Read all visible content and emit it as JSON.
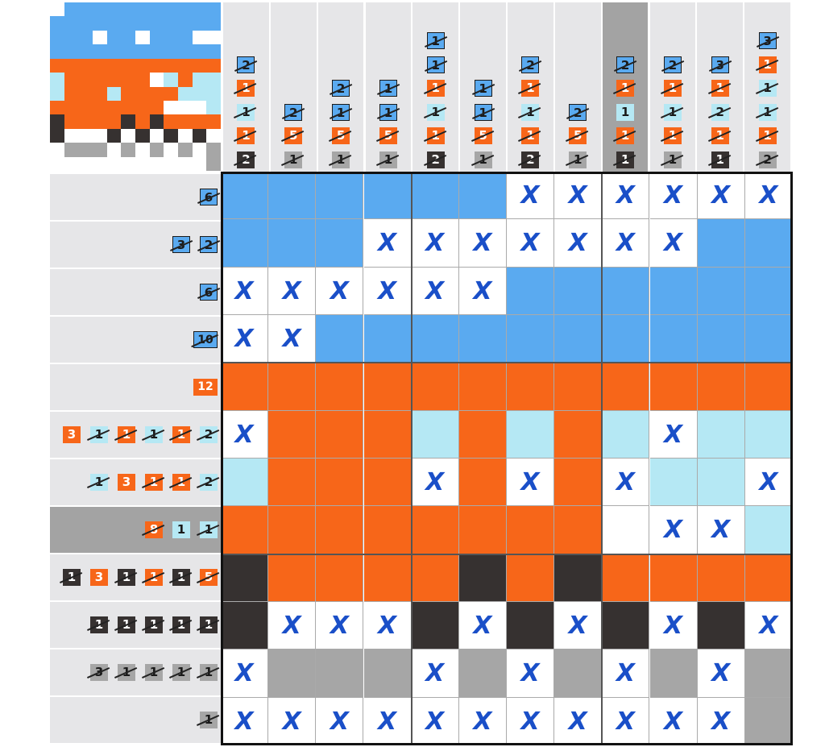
{
  "puzzle": {
    "rows": 12,
    "cols": 12,
    "selected_col": 8,
    "selected_row": 7
  },
  "palette": {
    "b": "#5aaaf0",
    "o": "#f76619",
    "l": "#b5e8f4",
    "d": "#363130",
    "g": "#a6a6a6",
    "w": "#ffffff"
  },
  "column_clues": [
    [
      {
        "v": "2",
        "c": "b",
        "d": true
      },
      {
        "v": "1",
        "c": "o",
        "d": true
      },
      {
        "v": "1",
        "c": "l",
        "d": true
      },
      {
        "v": "1",
        "c": "o",
        "d": true
      },
      {
        "v": "2",
        "c": "d",
        "d": true
      }
    ],
    [
      {
        "v": "2",
        "c": "b",
        "d": true
      },
      {
        "v": "5",
        "c": "o",
        "d": true
      },
      {
        "v": "1",
        "c": "g",
        "d": true
      }
    ],
    [
      {
        "v": "2",
        "c": "b",
        "d": true
      },
      {
        "v": "1",
        "c": "b",
        "d": true
      },
      {
        "v": "5",
        "c": "o",
        "d": true
      },
      {
        "v": "1",
        "c": "g",
        "d": true
      }
    ],
    [
      {
        "v": "1",
        "c": "b",
        "d": true
      },
      {
        "v": "1",
        "c": "b",
        "d": true
      },
      {
        "v": "5",
        "c": "o",
        "d": true
      },
      {
        "v": "1",
        "c": "g",
        "d": true
      }
    ],
    [
      {
        "v": "1",
        "c": "b",
        "d": true
      },
      {
        "v": "1",
        "c": "b",
        "d": true
      },
      {
        "v": "1",
        "c": "o",
        "d": true
      },
      {
        "v": "1",
        "c": "l",
        "d": true
      },
      {
        "v": "1",
        "c": "o",
        "d": true
      },
      {
        "v": "2",
        "c": "d",
        "d": true
      }
    ],
    [
      {
        "v": "1",
        "c": "b",
        "d": true
      },
      {
        "v": "1",
        "c": "b",
        "d": true
      },
      {
        "v": "5",
        "c": "o",
        "d": true
      },
      {
        "v": "1",
        "c": "g",
        "d": true
      }
    ],
    [
      {
        "v": "2",
        "c": "b",
        "d": true
      },
      {
        "v": "1",
        "c": "o",
        "d": true
      },
      {
        "v": "1",
        "c": "l",
        "d": true
      },
      {
        "v": "1",
        "c": "o",
        "d": true
      },
      {
        "v": "2",
        "c": "d",
        "d": true
      }
    ],
    [
      {
        "v": "2",
        "c": "b",
        "d": true
      },
      {
        "v": "5",
        "c": "o",
        "d": true
      },
      {
        "v": "1",
        "c": "g",
        "d": true
      }
    ],
    [
      {
        "v": "2",
        "c": "b",
        "d": true
      },
      {
        "v": "1",
        "c": "o",
        "d": true
      },
      {
        "v": "1",
        "c": "l",
        "d": false
      },
      {
        "v": "1",
        "c": "o",
        "d": true
      },
      {
        "v": "1",
        "c": "d",
        "d": true
      }
    ],
    [
      {
        "v": "2",
        "c": "b",
        "d": true
      },
      {
        "v": "1",
        "c": "o",
        "d": true
      },
      {
        "v": "1",
        "c": "l",
        "d": true
      },
      {
        "v": "1",
        "c": "o",
        "d": true
      },
      {
        "v": "1",
        "c": "g",
        "d": true
      }
    ],
    [
      {
        "v": "3",
        "c": "b",
        "d": true
      },
      {
        "v": "1",
        "c": "o",
        "d": true
      },
      {
        "v": "2",
        "c": "l",
        "d": true
      },
      {
        "v": "1",
        "c": "o",
        "d": true
      },
      {
        "v": "1",
        "c": "d",
        "d": true
      }
    ],
    [
      {
        "v": "3",
        "c": "b",
        "d": true
      },
      {
        "v": "1",
        "c": "o",
        "d": true
      },
      {
        "v": "1",
        "c": "l",
        "d": true
      },
      {
        "v": "1",
        "c": "l",
        "d": true
      },
      {
        "v": "1",
        "c": "o",
        "d": true
      },
      {
        "v": "2",
        "c": "g",
        "d": true
      }
    ]
  ],
  "row_clues": [
    [
      {
        "v": "6",
        "c": "b",
        "d": true
      }
    ],
    [
      {
        "v": "3",
        "c": "b",
        "d": true
      },
      {
        "v": "2",
        "c": "b",
        "d": true
      }
    ],
    [
      {
        "v": "6",
        "c": "b",
        "d": true
      }
    ],
    [
      {
        "v": "10",
        "c": "b",
        "d": true
      }
    ],
    [
      {
        "v": "12",
        "c": "o",
        "d": false
      }
    ],
    [
      {
        "v": "3",
        "c": "o",
        "d": false
      },
      {
        "v": "1",
        "c": "l",
        "d": true
      },
      {
        "v": "1",
        "c": "o",
        "d": true
      },
      {
        "v": "1",
        "c": "l",
        "d": true
      },
      {
        "v": "1",
        "c": "o",
        "d": true
      },
      {
        "v": "2",
        "c": "l",
        "d": true
      }
    ],
    [
      {
        "v": "1",
        "c": "l",
        "d": true
      },
      {
        "v": "3",
        "c": "o",
        "d": false
      },
      {
        "v": "1",
        "c": "o",
        "d": true
      },
      {
        "v": "1",
        "c": "o",
        "d": true
      },
      {
        "v": "2",
        "c": "l",
        "d": true
      }
    ],
    [
      {
        "v": "8",
        "c": "o",
        "d": true
      },
      {
        "v": "1",
        "c": "l",
        "d": false
      },
      {
        "v": "1",
        "c": "l",
        "d": true
      }
    ],
    [
      {
        "v": "1",
        "c": "d",
        "d": true
      },
      {
        "v": "3",
        "c": "o",
        "d": false
      },
      {
        "v": "1",
        "c": "d",
        "d": true
      },
      {
        "v": "1",
        "c": "o",
        "d": true
      },
      {
        "v": "1",
        "c": "d",
        "d": true
      },
      {
        "v": "5",
        "c": "o",
        "d": true
      }
    ],
    [
      {
        "v": "1",
        "c": "d",
        "d": true
      },
      {
        "v": "1",
        "c": "d",
        "d": true
      },
      {
        "v": "1",
        "c": "d",
        "d": true
      },
      {
        "v": "1",
        "c": "d",
        "d": true
      },
      {
        "v": "1",
        "c": "d",
        "d": true
      }
    ],
    [
      {
        "v": "3",
        "c": "g",
        "d": true
      },
      {
        "v": "1",
        "c": "g",
        "d": true
      },
      {
        "v": "1",
        "c": "g",
        "d": true
      },
      {
        "v": "1",
        "c": "g",
        "d": true
      },
      {
        "v": "1",
        "c": "g",
        "d": true
      }
    ],
    [
      {
        "v": "1",
        "c": "g",
        "d": true
      }
    ]
  ],
  "mark_glyph": "X",
  "grid": [
    "bbbbbbxxxxxx",
    "bbbxxxxxxxbb",
    "xxxxxxbbbbbb",
    "xxbbbbbbbbbb",
    "oooooooooooo",
    "xooolololxll",
    "loooxoxoxllx",
    "oooooooowxxl",
    "doooododoooo",
    "dxxxdxdxdxdx",
    "xgggxgxgxgxg",
    "xxxxxxxxxxxg"
  ],
  "preview": [
    "wbbbbbbbbbbb",
    "bbbbbbbbbbbb",
    "bbbwbbwbbbww",
    "bbbbbbbbbbbb",
    "oooooooooooo",
    "loooooowloll",
    "loooloooolll",
    "oooooooowwwl",
    "doooododoooo",
    "dwwwdwdwdwdw",
    "wgggwgwgwgwg",
    "wwwwwwwwwwwg"
  ]
}
